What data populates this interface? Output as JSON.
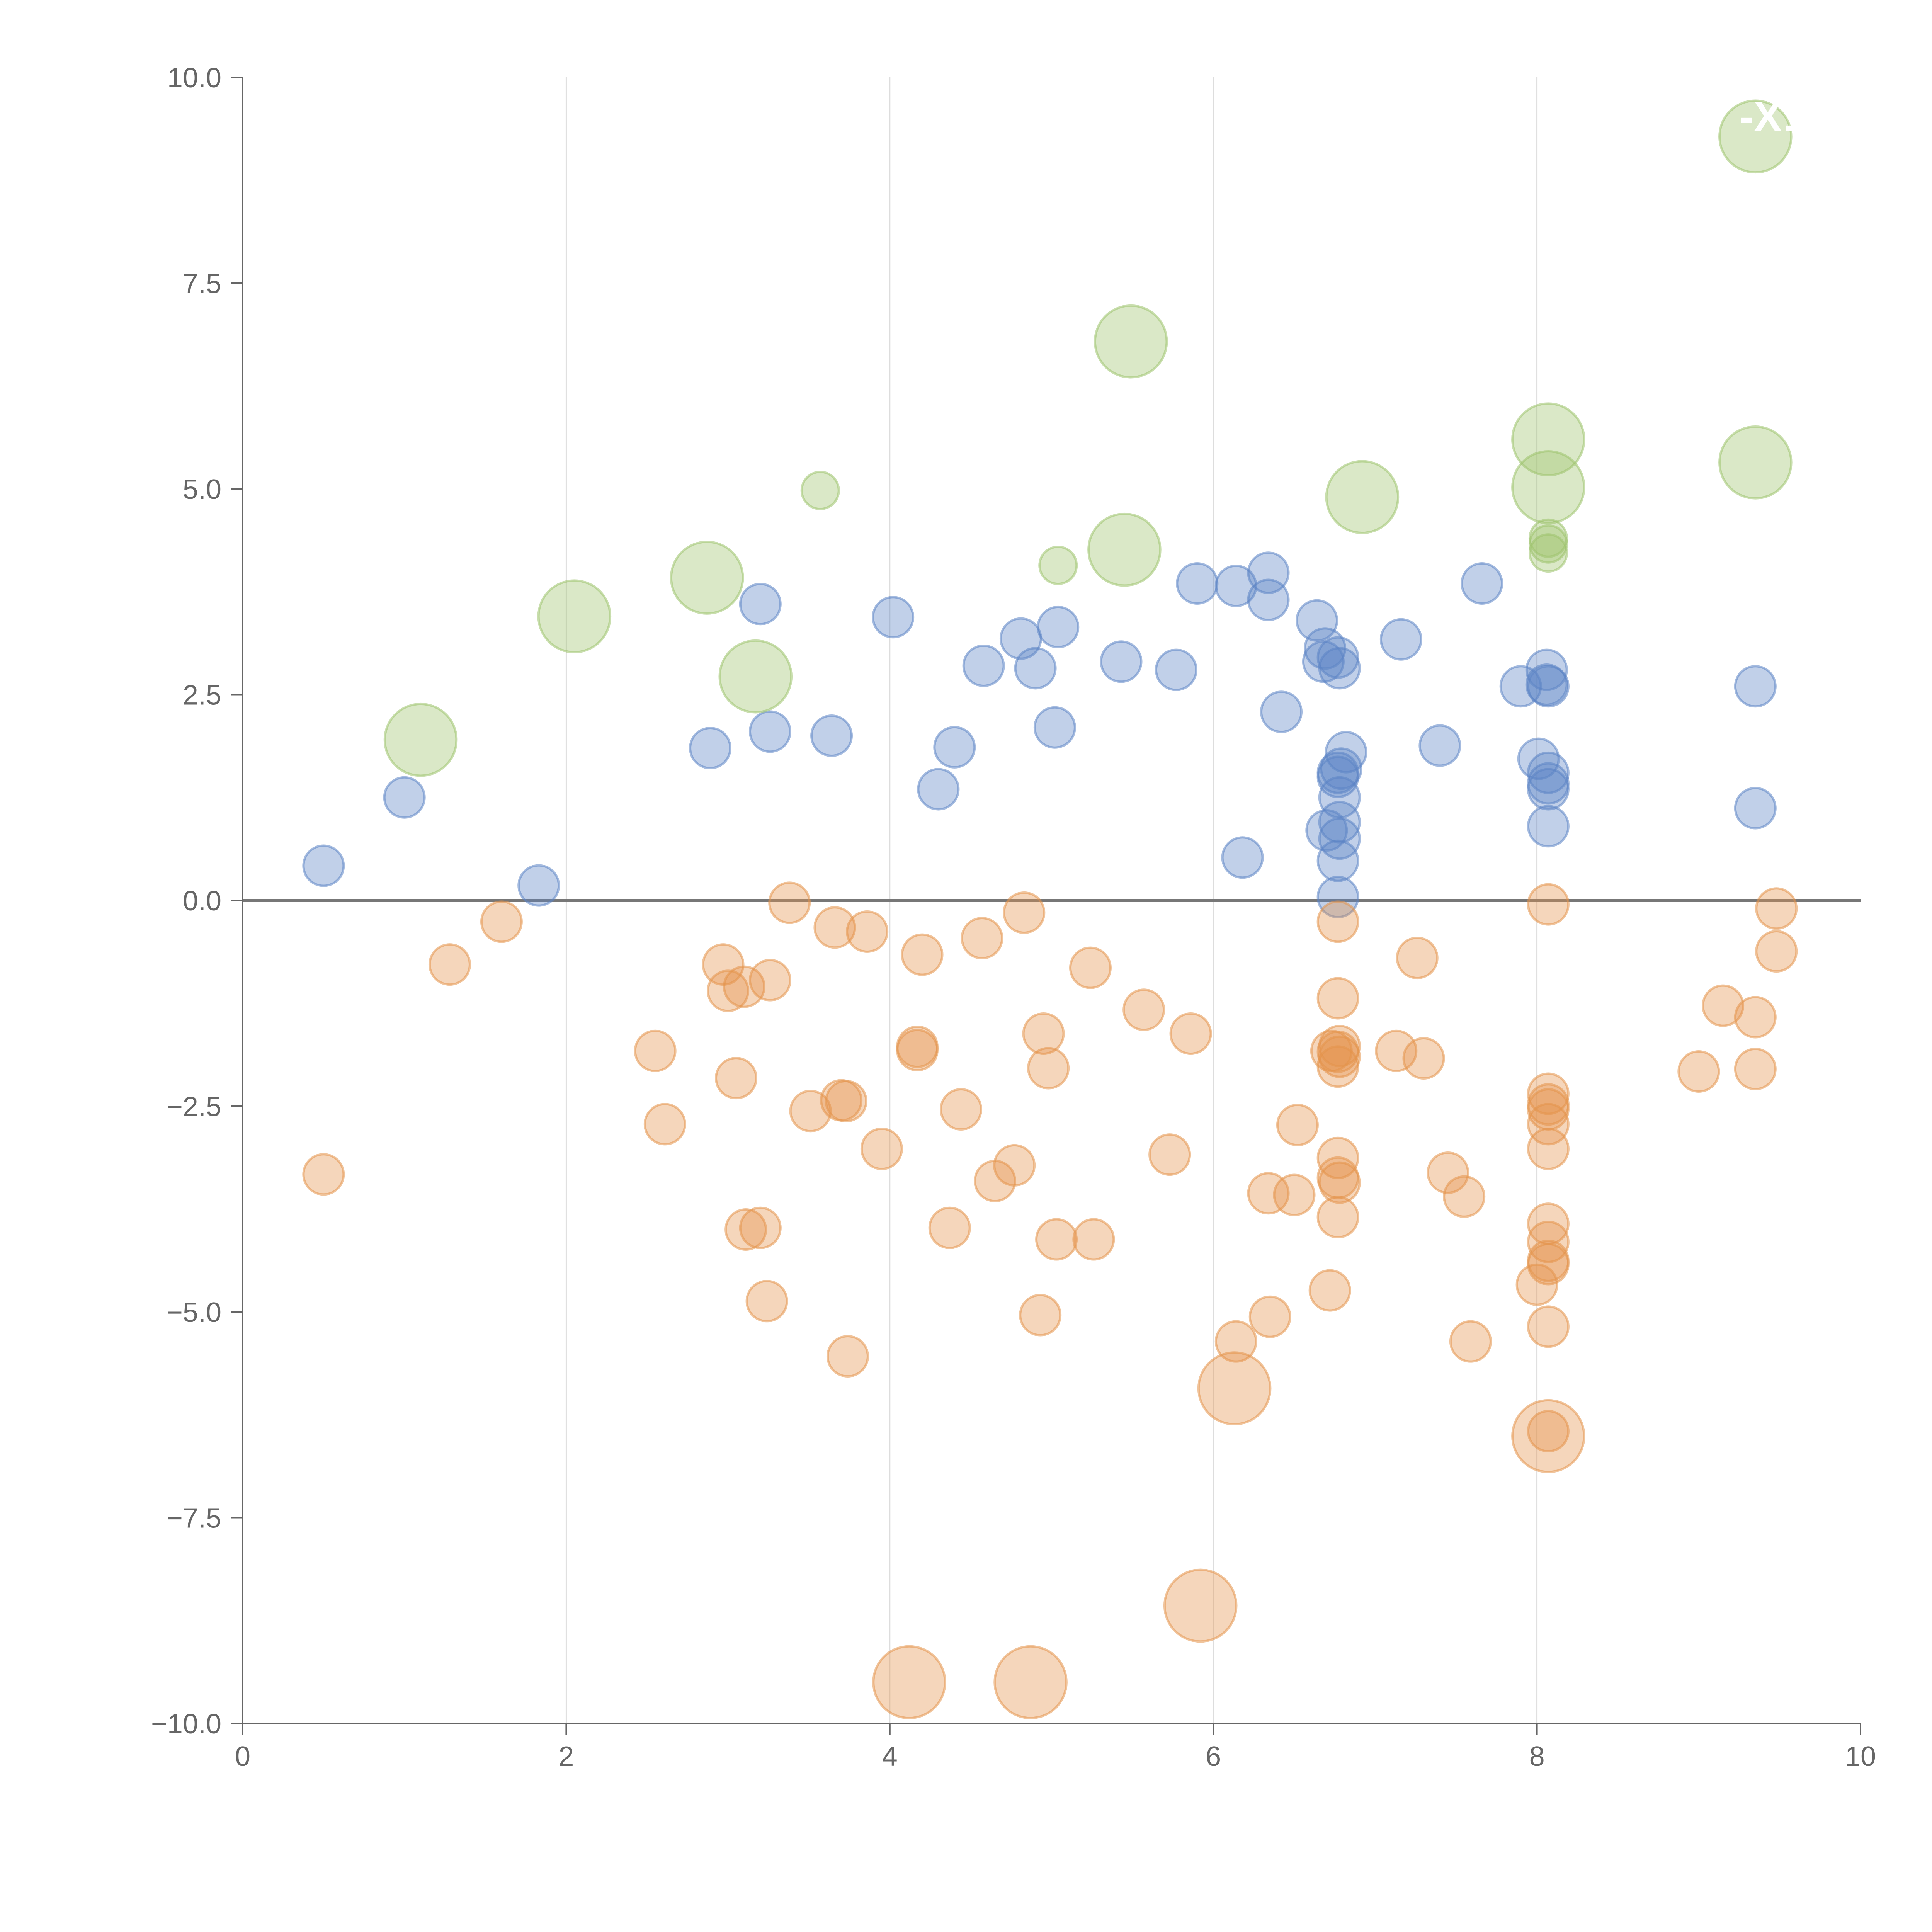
{
  "colors": {
    "blue": "#5b84c4",
    "orange": "#e4934b",
    "green": "#9dc36b",
    "axis": "#666666",
    "zero_line": "#777777",
    "grid": "#dddddd"
  },
  "chart_data": {
    "type": "scatter",
    "title": "",
    "xlabel": "",
    "ylabel": "",
    "xlim": [
      0,
      10
    ],
    "ylim": [
      -10,
      10
    ],
    "x_ticks": [
      "0",
      "2",
      "4",
      "6",
      "8",
      "10"
    ],
    "y_ticks": [
      "−10.0",
      "−7.5",
      "−5.0",
      "−2.5",
      "0.0",
      "2.5",
      "5.0",
      "7.5",
      "10.0"
    ],
    "grid": "vertical",
    "annotations": [
      "-X:"
    ],
    "series": [
      {
        "name": "blue",
        "color": "#5b84c4",
        "points": [
          {
            "x": 0.5,
            "y": 0.42
          },
          {
            "x": 1.0,
            "y": 1.25
          },
          {
            "x": 1.83,
            "y": 0.18
          },
          {
            "x": 2.89,
            "y": 1.85
          },
          {
            "x": 3.2,
            "y": 3.6
          },
          {
            "x": 3.26,
            "y": 2.05
          },
          {
            "x": 3.64,
            "y": 2.0
          },
          {
            "x": 4.02,
            "y": 3.44
          },
          {
            "x": 4.3,
            "y": 1.35
          },
          {
            "x": 4.4,
            "y": 1.86
          },
          {
            "x": 4.58,
            "y": 2.85
          },
          {
            "x": 4.81,
            "y": 3.18
          },
          {
            "x": 4.9,
            "y": 2.82
          },
          {
            "x": 5.02,
            "y": 2.1
          },
          {
            "x": 5.04,
            "y": 3.32
          },
          {
            "x": 5.43,
            "y": 2.9
          },
          {
            "x": 5.77,
            "y": 2.8
          },
          {
            "x": 5.9,
            "y": 3.85
          },
          {
            "x": 6.14,
            "y": 3.82
          },
          {
            "x": 6.18,
            "y": 0.52
          },
          {
            "x": 6.34,
            "y": 3.98
          },
          {
            "x": 6.34,
            "y": 3.65
          },
          {
            "x": 6.42,
            "y": 2.29
          },
          {
            "x": 6.64,
            "y": 3.4
          },
          {
            "x": 6.68,
            "y": 2.9
          },
          {
            "x": 6.69,
            "y": 3.06
          },
          {
            "x": 6.7,
            "y": 0.85
          },
          {
            "x": 6.77,
            "y": 2.95
          },
          {
            "x": 6.78,
            "y": 2.82
          },
          {
            "x": 6.77,
            "y": 1.55
          },
          {
            "x": 6.77,
            "y": 1.5
          },
          {
            "x": 6.78,
            "y": 1.25
          },
          {
            "x": 6.78,
            "y": 0.95
          },
          {
            "x": 6.78,
            "y": 0.75
          },
          {
            "x": 6.77,
            "y": 0.48
          },
          {
            "x": 6.77,
            "y": 0.04
          },
          {
            "x": 6.82,
            "y": 1.8
          },
          {
            "x": 6.79,
            "y": 1.6
          },
          {
            "x": 7.16,
            "y": 3.17
          },
          {
            "x": 7.4,
            "y": 1.88
          },
          {
            "x": 7.66,
            "y": 3.85
          },
          {
            "x": 7.9,
            "y": 2.6
          },
          {
            "x": 8.01,
            "y": 1.72
          },
          {
            "x": 8.06,
            "y": 2.8
          },
          {
            "x": 8.07,
            "y": 2.6
          },
          {
            "x": 8.06,
            "y": 2.62
          },
          {
            "x": 8.07,
            "y": 1.55
          },
          {
            "x": 8.07,
            "y": 1.42
          },
          {
            "x": 8.07,
            "y": 1.35
          },
          {
            "x": 8.07,
            "y": 0.9
          },
          {
            "x": 9.35,
            "y": 2.6
          },
          {
            "x": 9.35,
            "y": 1.12
          }
        ]
      },
      {
        "name": "orange",
        "color": "#e4934b",
        "points": [
          {
            "x": 0.5,
            "y": -3.33
          },
          {
            "x": 1.28,
            "y": -0.78
          },
          {
            "x": 1.6,
            "y": -0.26
          },
          {
            "x": 2.55,
            "y": -1.83
          },
          {
            "x": 2.61,
            "y": -2.72
          },
          {
            "x": 2.97,
            "y": -0.78
          },
          {
            "x": 3.0,
            "y": -1.1
          },
          {
            "x": 3.1,
            "y": -1.05
          },
          {
            "x": 3.05,
            "y": -2.16
          },
          {
            "x": 3.11,
            "y": -4.0
          },
          {
            "x": 3.2,
            "y": -3.98
          },
          {
            "x": 3.26,
            "y": -0.97
          },
          {
            "x": 3.24,
            "y": -4.87
          },
          {
            "x": 3.38,
            "y": -0.03
          },
          {
            "x": 3.51,
            "y": -2.56
          },
          {
            "x": 3.66,
            "y": -0.33
          },
          {
            "x": 3.7,
            "y": -2.43
          },
          {
            "x": 3.73,
            "y": -2.44
          },
          {
            "x": 3.74,
            "y": -5.54
          },
          {
            "x": 3.86,
            "y": -0.38
          },
          {
            "x": 3.95,
            "y": -3.02
          },
          {
            "x": 4.17,
            "y": -1.82
          },
          {
            "x": 4.17,
            "y": -1.78
          },
          {
            "x": 4.2,
            "y": -0.66
          },
          {
            "x": 4.37,
            "y": -3.98
          },
          {
            "x": 4.44,
            "y": -2.54
          },
          {
            "x": 4.57,
            "y": -0.46
          },
          {
            "x": 4.65,
            "y": -3.41
          },
          {
            "x": 4.77,
            "y": -3.22
          },
          {
            "x": 4.83,
            "y": -0.15
          },
          {
            "x": 4.93,
            "y": -5.04
          },
          {
            "x": 4.95,
            "y": -1.62
          },
          {
            "x": 4.98,
            "y": -2.04
          },
          {
            "x": 5.03,
            "y": -4.12
          },
          {
            "x": 5.24,
            "y": -0.82
          },
          {
            "x": 5.26,
            "y": -4.12
          },
          {
            "x": 5.57,
            "y": -1.33
          },
          {
            "x": 5.73,
            "y": -3.09
          },
          {
            "x": 5.86,
            "y": -1.62
          },
          {
            "x": 6.14,
            "y": -5.36
          },
          {
            "x": 6.34,
            "y": -3.56
          },
          {
            "x": 6.35,
            "y": -5.06
          },
          {
            "x": 6.5,
            "y": -3.58
          },
          {
            "x": 6.52,
            "y": -2.73
          },
          {
            "x": 6.72,
            "y": -4.74
          },
          {
            "x": 6.77,
            "y": -0.26
          },
          {
            "x": 6.77,
            "y": -1.19
          },
          {
            "x": 6.78,
            "y": -1.77
          },
          {
            "x": 6.77,
            "y": -1.84
          },
          {
            "x": 6.78,
            "y": -1.9
          },
          {
            "x": 6.77,
            "y": -2.02
          },
          {
            "x": 6.73,
            "y": -1.83
          },
          {
            "x": 6.77,
            "y": -3.13
          },
          {
            "x": 6.77,
            "y": -3.37
          },
          {
            "x": 6.78,
            "y": -3.43
          },
          {
            "x": 6.77,
            "y": -3.85
          },
          {
            "x": 7.13,
            "y": -1.83
          },
          {
            "x": 7.26,
            "y": -0.7
          },
          {
            "x": 7.3,
            "y": -1.92
          },
          {
            "x": 7.45,
            "y": -3.31
          },
          {
            "x": 7.55,
            "y": -3.6
          },
          {
            "x": 7.59,
            "y": -5.36
          },
          {
            "x": 8.0,
            "y": -4.67
          },
          {
            "x": 8.07,
            "y": -0.05
          },
          {
            "x": 8.07,
            "y": -2.35
          },
          {
            "x": 8.07,
            "y": -2.48
          },
          {
            "x": 8.07,
            "y": -2.54
          },
          {
            "x": 8.07,
            "y": -2.72
          },
          {
            "x": 8.07,
            "y": -3.02
          },
          {
            "x": 8.07,
            "y": -3.93
          },
          {
            "x": 8.07,
            "y": -4.15
          },
          {
            "x": 8.07,
            "y": -4.38
          },
          {
            "x": 8.07,
            "y": -4.42
          },
          {
            "x": 8.07,
            "y": -5.18
          },
          {
            "x": 8.07,
            "y": -6.45
          },
          {
            "x": 9.0,
            "y": -2.08
          },
          {
            "x": 9.15,
            "y": -1.28
          },
          {
            "x": 9.35,
            "y": -1.42
          },
          {
            "x": 9.35,
            "y": -2.05
          },
          {
            "x": 9.48,
            "y": -0.1
          },
          {
            "x": 9.48,
            "y": -0.62
          }
        ]
      },
      {
        "name": "green",
        "color": "#9dc36b",
        "points": [
          {
            "x": 1.1,
            "y": 1.95,
            "r": 29
          },
          {
            "x": 2.05,
            "y": 3.45,
            "r": 29
          },
          {
            "x": 2.87,
            "y": 3.92,
            "r": 29
          },
          {
            "x": 3.17,
            "y": 2.72,
            "r": 29
          },
          {
            "x": 3.57,
            "y": 4.98,
            "r": 15
          },
          {
            "x": 5.04,
            "y": 4.07,
            "r": 15
          },
          {
            "x": 5.45,
            "y": 4.26,
            "r": 29
          },
          {
            "x": 5.49,
            "y": 6.79,
            "r": 29
          },
          {
            "x": 6.92,
            "y": 4.9,
            "r": 29
          },
          {
            "x": 8.07,
            "y": 5.6,
            "r": 29
          },
          {
            "x": 8.07,
            "y": 5.02,
            "r": 29
          },
          {
            "x": 8.07,
            "y": 4.4,
            "r": 15
          },
          {
            "x": 8.07,
            "y": 4.33,
            "r": 15
          },
          {
            "x": 8.07,
            "y": 4.22,
            "r": 15
          },
          {
            "x": 9.35,
            "y": 9.28,
            "r": 29
          },
          {
            "x": 9.35,
            "y": 5.32,
            "r": 29
          }
        ]
      },
      {
        "name": "orange-large",
        "color": "#e4934b",
        "points": [
          {
            "x": 4.12,
            "y": -9.5,
            "r": 29
          },
          {
            "x": 4.87,
            "y": -9.5,
            "r": 29
          },
          {
            "x": 5.92,
            "y": -8.57,
            "r": 29
          },
          {
            "x": 6.13,
            "y": -5.93,
            "r": 29
          },
          {
            "x": 8.07,
            "y": -6.51,
            "r": 29
          }
        ]
      }
    ]
  }
}
